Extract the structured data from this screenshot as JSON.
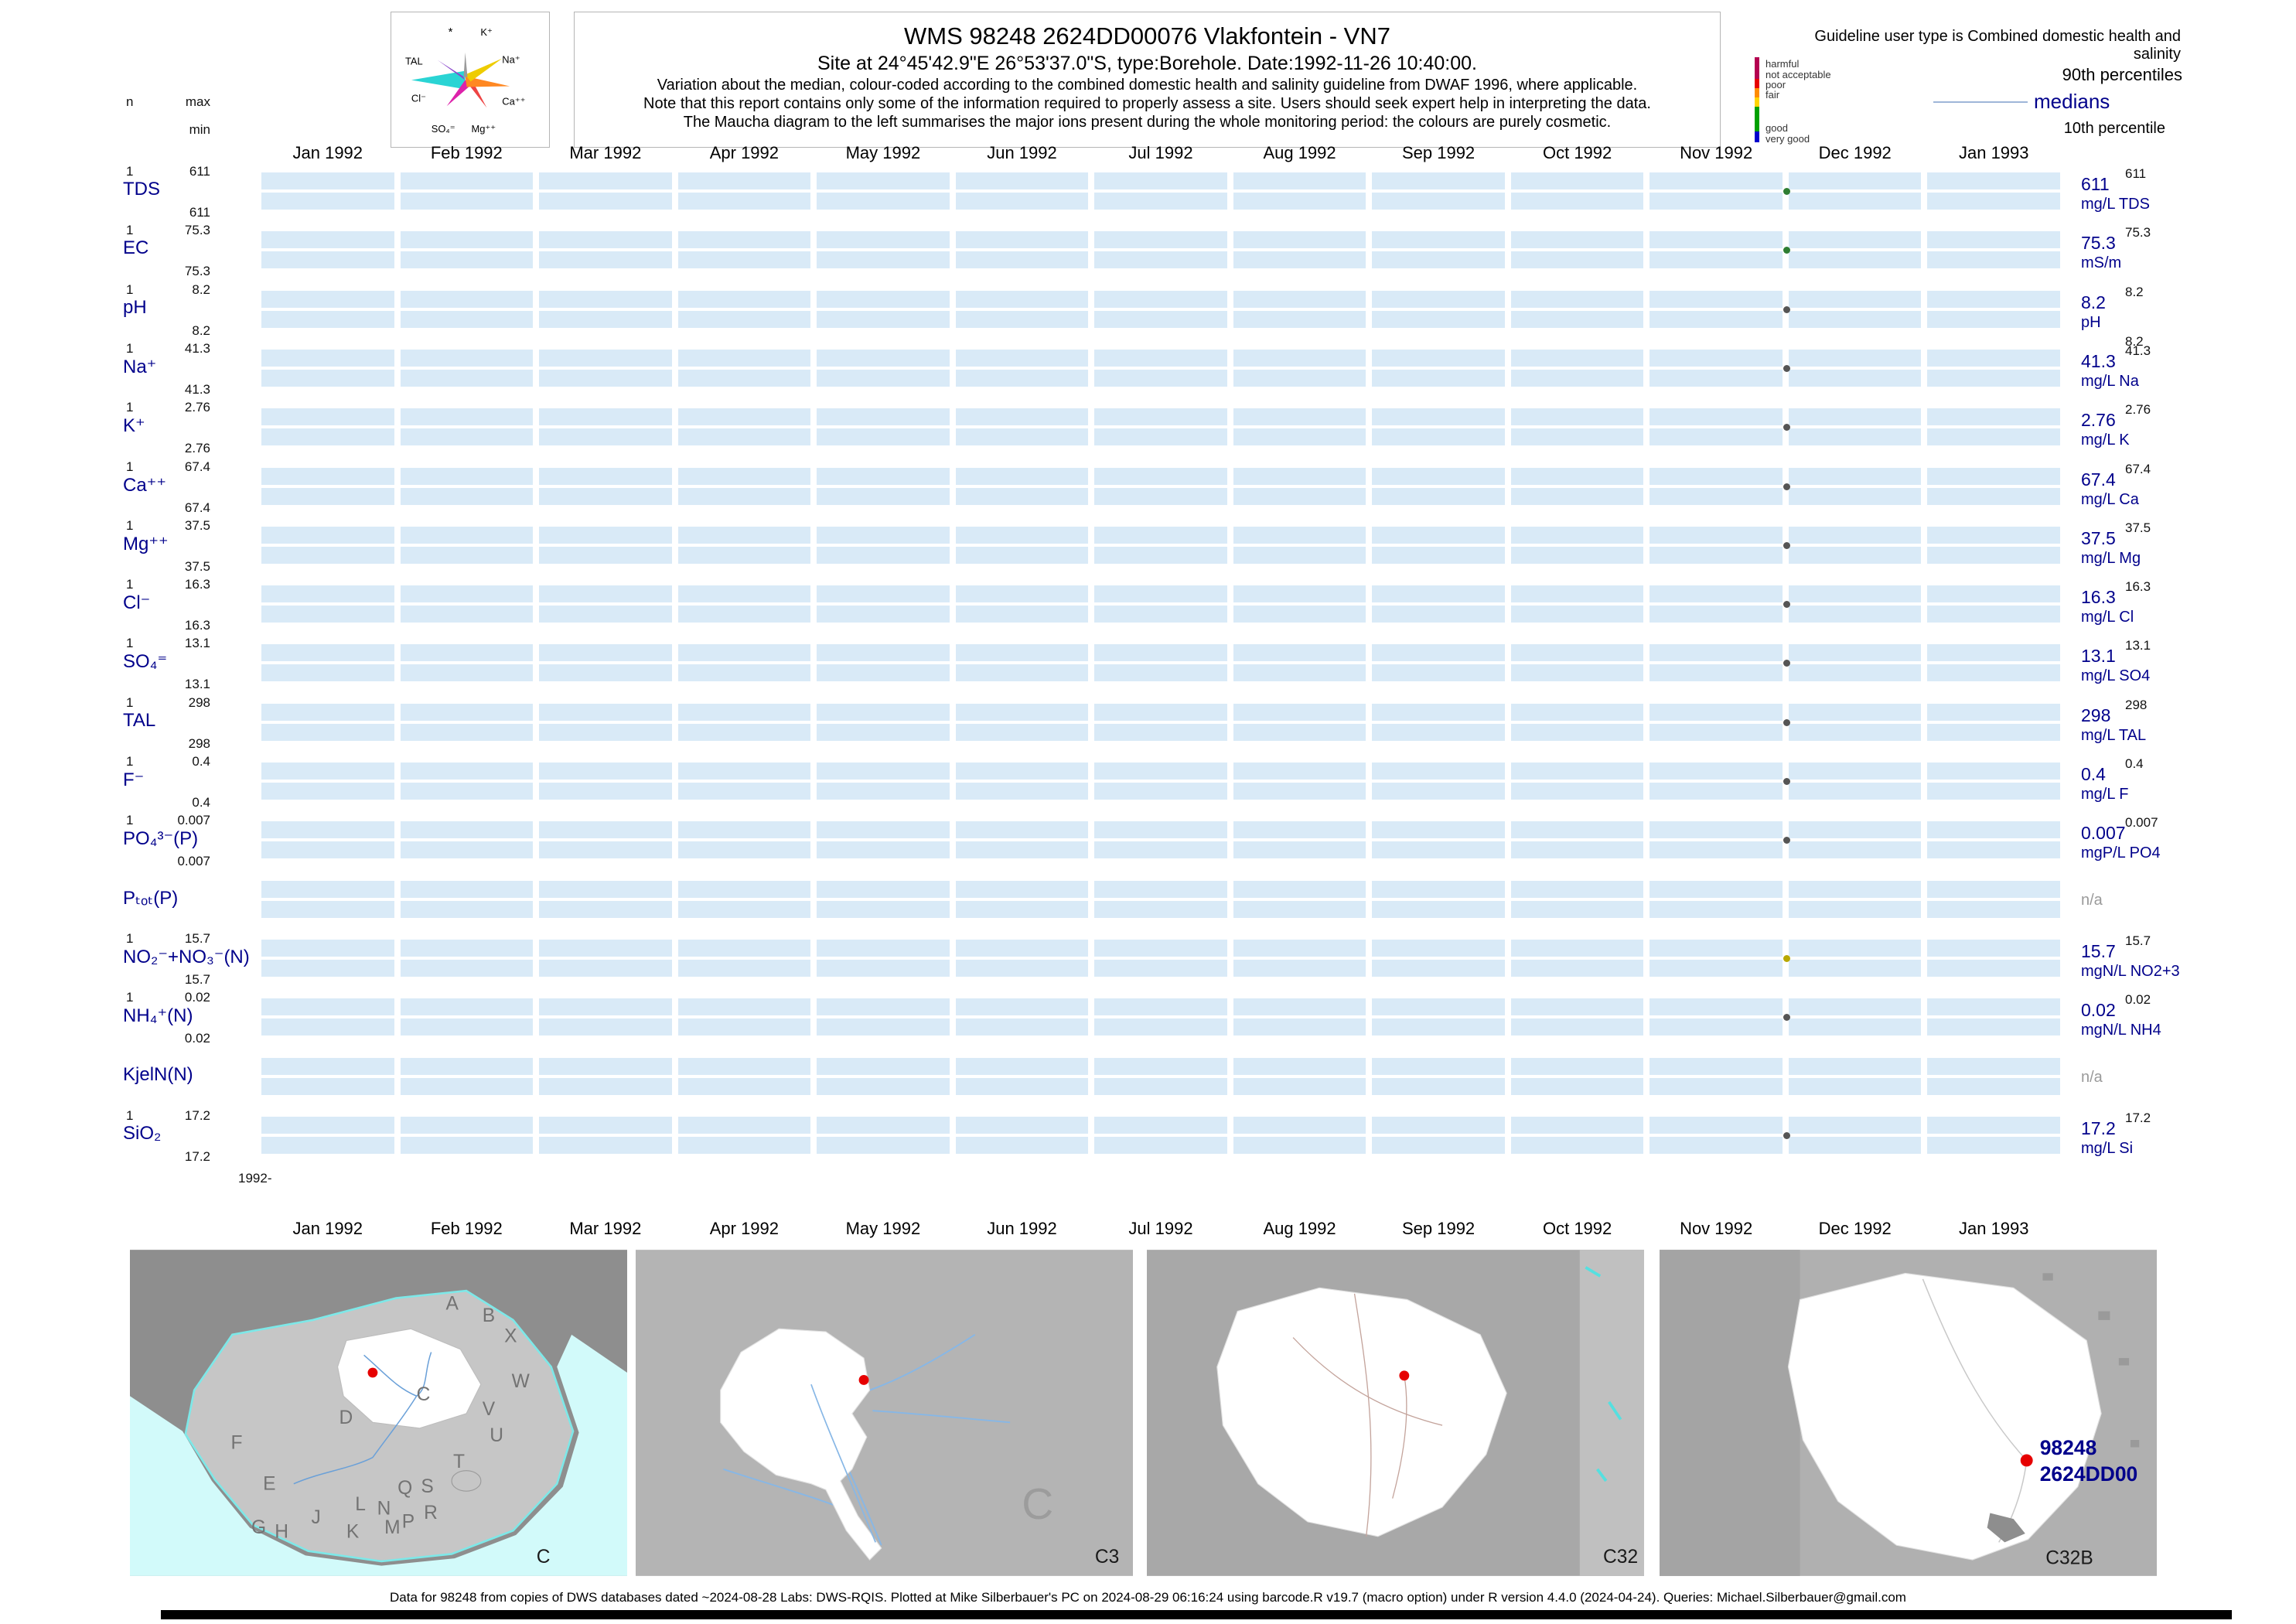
{
  "header": {
    "title": "WMS 98248 2624DD00076 Vlakfontein - VN7",
    "subtitle": "Site at 24°45'42.9\"E 26°53'37.0\"S, type:Borehole. Date:1992-11-26 10:40:00.",
    "notes": [
      "Variation about the median,  colour-coded according to the combined domestic health and salinity guideline from DWAF 1996, where applicable.",
      "Note that this report contains only some of the information required to properly assess a site. Users should seek expert help in interpreting the data.",
      "The Maucha diagram to the left summarises the major ions present during the whole monitoring period: the colours are purely cosmetic."
    ]
  },
  "axis_header": {
    "n": "n",
    "max": "max",
    "min": "min"
  },
  "maucha": {
    "labels": {
      "star": "*",
      "k": "K⁺",
      "na": "Na⁺",
      "ca": "Ca⁺⁺",
      "mg": "Mg⁺⁺",
      "so4": "SO₄⁼",
      "cl": "Cl⁻",
      "tal": "TAL"
    }
  },
  "legend": {
    "guideline": "Guideline user type is Combined domestic health and salinity",
    "classes": [
      {
        "label": "harmful",
        "color": "#b40050"
      },
      {
        "label": "not acceptable",
        "color": "#e60000"
      },
      {
        "label": "poor",
        "color": "#ff8c00"
      },
      {
        "label": "fair",
        "color": "#ffd400"
      },
      {
        "label": "good",
        "color": "#00a000"
      },
      {
        "label": "very good",
        "color": "#0000cd"
      }
    ],
    "p90_label": "90th percentiles",
    "median_label": "medians",
    "p10_label": "10th percentile"
  },
  "months": [
    "Jan 1992",
    "Feb 1992",
    "Mar 1992",
    "Apr 1992",
    "May 1992",
    "Jun 1992",
    "Jul 1992",
    "Aug 1992",
    "Sep 1992",
    "Oct 1992",
    "Nov 1992",
    "Dec 1992",
    "Jan 1993"
  ],
  "start_label": "1992-",
  "rows": [
    {
      "param": "TDS",
      "n": "1",
      "max": "611",
      "min": "611",
      "p90": "611",
      "median": "611",
      "unit": "mg/L TDS",
      "dot_color": "#2e7d32"
    },
    {
      "param": "EC",
      "n": "1",
      "max": "75.3",
      "min": "75.3",
      "p90": "75.3",
      "median": "75.3",
      "unit": "mS/m",
      "dot_color": "#2e7d32"
    },
    {
      "param": "pH",
      "n": "1",
      "max": "8.2",
      "min": "8.2",
      "p90": "8.2",
      "median": "8.2",
      "unit": "pH",
      "p10": "8.2",
      "dot_color": "#555555"
    },
    {
      "param": "Na⁺",
      "n": "1",
      "max": "41.3",
      "min": "41.3",
      "p90": "41.3",
      "median": "41.3",
      "unit": "mg/L Na",
      "dot_color": "#555555"
    },
    {
      "param": "K⁺",
      "n": "1",
      "max": "2.76",
      "min": "2.76",
      "p90": "2.76",
      "median": "2.76",
      "unit": "mg/L K",
      "dot_color": "#555555"
    },
    {
      "param": "Ca⁺⁺",
      "n": "1",
      "max": "67.4",
      "min": "67.4",
      "p90": "67.4",
      "median": "67.4",
      "unit": "mg/L Ca",
      "dot_color": "#555555"
    },
    {
      "param": "Mg⁺⁺",
      "n": "1",
      "max": "37.5",
      "min": "37.5",
      "p90": "37.5",
      "median": "37.5",
      "unit": "mg/L Mg",
      "dot_color": "#555555"
    },
    {
      "param": "Cl⁻",
      "n": "1",
      "max": "16.3",
      "min": "16.3",
      "p90": "16.3",
      "median": "16.3",
      "unit": "mg/L Cl",
      "dot_color": "#555555"
    },
    {
      "param": "SO₄⁼",
      "n": "1",
      "max": "13.1",
      "min": "13.1",
      "p90": "13.1",
      "median": "13.1",
      "unit": "mg/L SO4",
      "dot_color": "#555555"
    },
    {
      "param": "TAL",
      "n": "1",
      "max": "298",
      "min": "298",
      "p90": "298",
      "median": "298",
      "unit": "mg/L TAL",
      "dot_color": "#555555"
    },
    {
      "param": "F⁻",
      "n": "1",
      "max": "0.4",
      "min": "0.4",
      "p90": "0.4",
      "median": "0.4",
      "unit": "mg/L F",
      "dot_color": "#555555"
    },
    {
      "param": "PO₄³⁻(P)",
      "n": "1",
      "max": "0.007",
      "min": "0.007",
      "p90": "0.007",
      "median": "0.007",
      "unit": "mgP/L PO4",
      "dot_color": "#555555"
    },
    {
      "param": "Pₜₒₜ(P)",
      "n": "",
      "max": "",
      "min": "",
      "p90": "",
      "median": "n/a",
      "unit": "",
      "dot_color": null
    },
    {
      "param": "NO₂⁻+NO₃⁻(N)",
      "n": "1",
      "max": "15.7",
      "min": "15.7",
      "p90": "15.7",
      "median": "15.7",
      "unit": "mgN/L NO2+3",
      "dot_color": "#b8a800"
    },
    {
      "param": "NH₄⁺(N)",
      "n": "1",
      "max": "0.02",
      "min": "0.02",
      "p90": "0.02",
      "median": "0.02",
      "unit": "mgN/L NH4",
      "dot_color": "#555555"
    },
    {
      "param": "KjelN(N)",
      "n": "",
      "max": "",
      "min": "",
      "p90": "",
      "median": "n/a",
      "unit": "",
      "dot_color": null
    },
    {
      "param": "SiO₂",
      "n": "1",
      "max": "17.2",
      "min": "17.2",
      "p90": "17.2",
      "median": "17.2",
      "unit": "mg/L Si",
      "dot_color": "#555555"
    }
  ],
  "maps": [
    {
      "code": "C",
      "region_letters": [
        "A",
        "B",
        "C",
        "D",
        "E",
        "F",
        "G",
        "H",
        "J",
        "K",
        "L",
        "M",
        "N",
        "P",
        "Q",
        "R",
        "S",
        "T",
        "U",
        "V",
        "W",
        "X"
      ]
    },
    {
      "code": "C3",
      "big_letter": "C"
    },
    {
      "code": "C32"
    },
    {
      "code": "C32B",
      "station_id": "98248",
      "station_code": "2624DD00"
    }
  ],
  "footer": "Data for 98248 from copies of DWS databases dated ~2024-08-28 Labs: DWS-RQIS. Plotted at Mike Silberbauer's PC on 2024-08-29 06:16:24 using barcode.R v19.7 (macro option) under R version 4.4.0 (2024-04-24). Queries: Michael.Silberbauer@gmail.com",
  "chart_data": {
    "type": "scatter",
    "title": "WMS 98248 2624DD00076 Vlakfontein - VN7",
    "x_range": [
      "Jan 1992",
      "Jan 1993"
    ],
    "sample_date": "1992-11-26",
    "legend_position": "top-right",
    "grid": false,
    "series": [
      {
        "name": "TDS",
        "unit": "mg/L TDS",
        "x": [
          "1992-11-26"
        ],
        "values": [
          611
        ],
        "min": 611,
        "max": 611,
        "n": 1
      },
      {
        "name": "EC",
        "unit": "mS/m",
        "x": [
          "1992-11-26"
        ],
        "values": [
          75.3
        ],
        "min": 75.3,
        "max": 75.3,
        "n": 1
      },
      {
        "name": "pH",
        "unit": "pH",
        "x": [
          "1992-11-26"
        ],
        "values": [
          8.2
        ],
        "min": 8.2,
        "max": 8.2,
        "n": 1
      },
      {
        "name": "Na",
        "unit": "mg/L Na",
        "x": [
          "1992-11-26"
        ],
        "values": [
          41.3
        ],
        "min": 41.3,
        "max": 41.3,
        "n": 1
      },
      {
        "name": "K",
        "unit": "mg/L K",
        "x": [
          "1992-11-26"
        ],
        "values": [
          2.76
        ],
        "min": 2.76,
        "max": 2.76,
        "n": 1
      },
      {
        "name": "Ca",
        "unit": "mg/L Ca",
        "x": [
          "1992-11-26"
        ],
        "values": [
          67.4
        ],
        "min": 67.4,
        "max": 67.4,
        "n": 1
      },
      {
        "name": "Mg",
        "unit": "mg/L Mg",
        "x": [
          "1992-11-26"
        ],
        "values": [
          37.5
        ],
        "min": 37.5,
        "max": 37.5,
        "n": 1
      },
      {
        "name": "Cl",
        "unit": "mg/L Cl",
        "x": [
          "1992-11-26"
        ],
        "values": [
          16.3
        ],
        "min": 16.3,
        "max": 16.3,
        "n": 1
      },
      {
        "name": "SO4",
        "unit": "mg/L SO4",
        "x": [
          "1992-11-26"
        ],
        "values": [
          13.1
        ],
        "min": 13.1,
        "max": 13.1,
        "n": 1
      },
      {
        "name": "TAL",
        "unit": "mg/L TAL",
        "x": [
          "1992-11-26"
        ],
        "values": [
          298
        ],
        "min": 298,
        "max": 298,
        "n": 1
      },
      {
        "name": "F",
        "unit": "mg/L F",
        "x": [
          "1992-11-26"
        ],
        "values": [
          0.4
        ],
        "min": 0.4,
        "max": 0.4,
        "n": 1
      },
      {
        "name": "PO4(P)",
        "unit": "mgP/L PO4",
        "x": [
          "1992-11-26"
        ],
        "values": [
          0.007
        ],
        "min": 0.007,
        "max": 0.007,
        "n": 1
      },
      {
        "name": "Ptot(P)",
        "unit": "",
        "x": [],
        "values": [],
        "note": "n/a"
      },
      {
        "name": "NO2+NO3(N)",
        "unit": "mgN/L NO2+3",
        "x": [
          "1992-11-26"
        ],
        "values": [
          15.7
        ],
        "min": 15.7,
        "max": 15.7,
        "n": 1
      },
      {
        "name": "NH4(N)",
        "unit": "mgN/L NH4",
        "x": [
          "1992-11-26"
        ],
        "values": [
          0.02
        ],
        "min": 0.02,
        "max": 0.02,
        "n": 1
      },
      {
        "name": "KjelN(N)",
        "unit": "",
        "x": [],
        "values": [],
        "note": "n/a"
      },
      {
        "name": "SiO2",
        "unit": "mg/L Si",
        "x": [
          "1992-11-26"
        ],
        "values": [
          17.2
        ],
        "min": 17.2,
        "max": 17.2,
        "n": 1
      }
    ]
  }
}
